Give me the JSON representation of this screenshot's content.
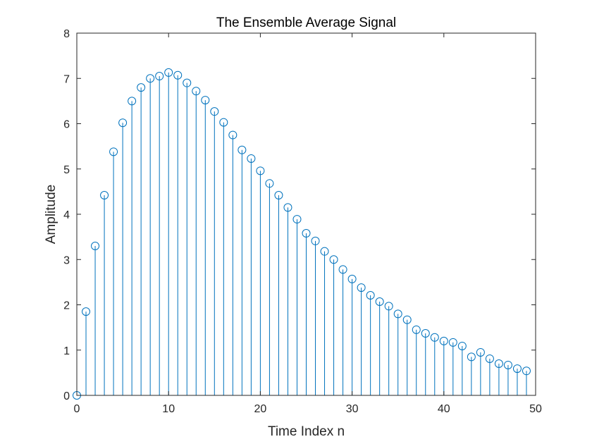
{
  "chart_data": {
    "type": "stem",
    "title": "The Ensemble Average Signal",
    "xlabel": "Time Index n",
    "ylabel": "Amplitude",
    "xlim": [
      0,
      50
    ],
    "ylim": [
      0,
      8
    ],
    "xticks": [
      0,
      10,
      20,
      30,
      40,
      50
    ],
    "yticks": [
      0,
      1,
      2,
      3,
      4,
      5,
      6,
      7,
      8
    ],
    "grid": false,
    "color": "#0072BD",
    "marker": "circle-open",
    "x": [
      0,
      1,
      2,
      3,
      4,
      5,
      6,
      7,
      8,
      9,
      10,
      11,
      12,
      13,
      14,
      15,
      16,
      17,
      18,
      19,
      20,
      21,
      22,
      23,
      24,
      25,
      26,
      27,
      28,
      29,
      30,
      31,
      32,
      33,
      34,
      35,
      36,
      37,
      38,
      39,
      40,
      41,
      42,
      43,
      44,
      45,
      46,
      47,
      48,
      49
    ],
    "y": [
      0,
      1.85,
      3.3,
      4.42,
      5.38,
      6.02,
      6.5,
      6.8,
      7.0,
      7.05,
      7.13,
      7.07,
      6.9,
      6.72,
      6.52,
      6.27,
      6.03,
      5.75,
      5.42,
      5.23,
      4.96,
      4.68,
      4.42,
      4.15,
      3.89,
      3.58,
      3.41,
      3.18,
      3.0,
      2.78,
      2.57,
      2.38,
      2.21,
      2.07,
      1.97,
      1.8,
      1.67,
      1.45,
      1.37,
      1.28,
      1.2,
      1.17,
      1.09,
      0.85,
      0.95,
      0.81,
      0.7,
      0.67,
      0.59,
      0.54
    ]
  }
}
